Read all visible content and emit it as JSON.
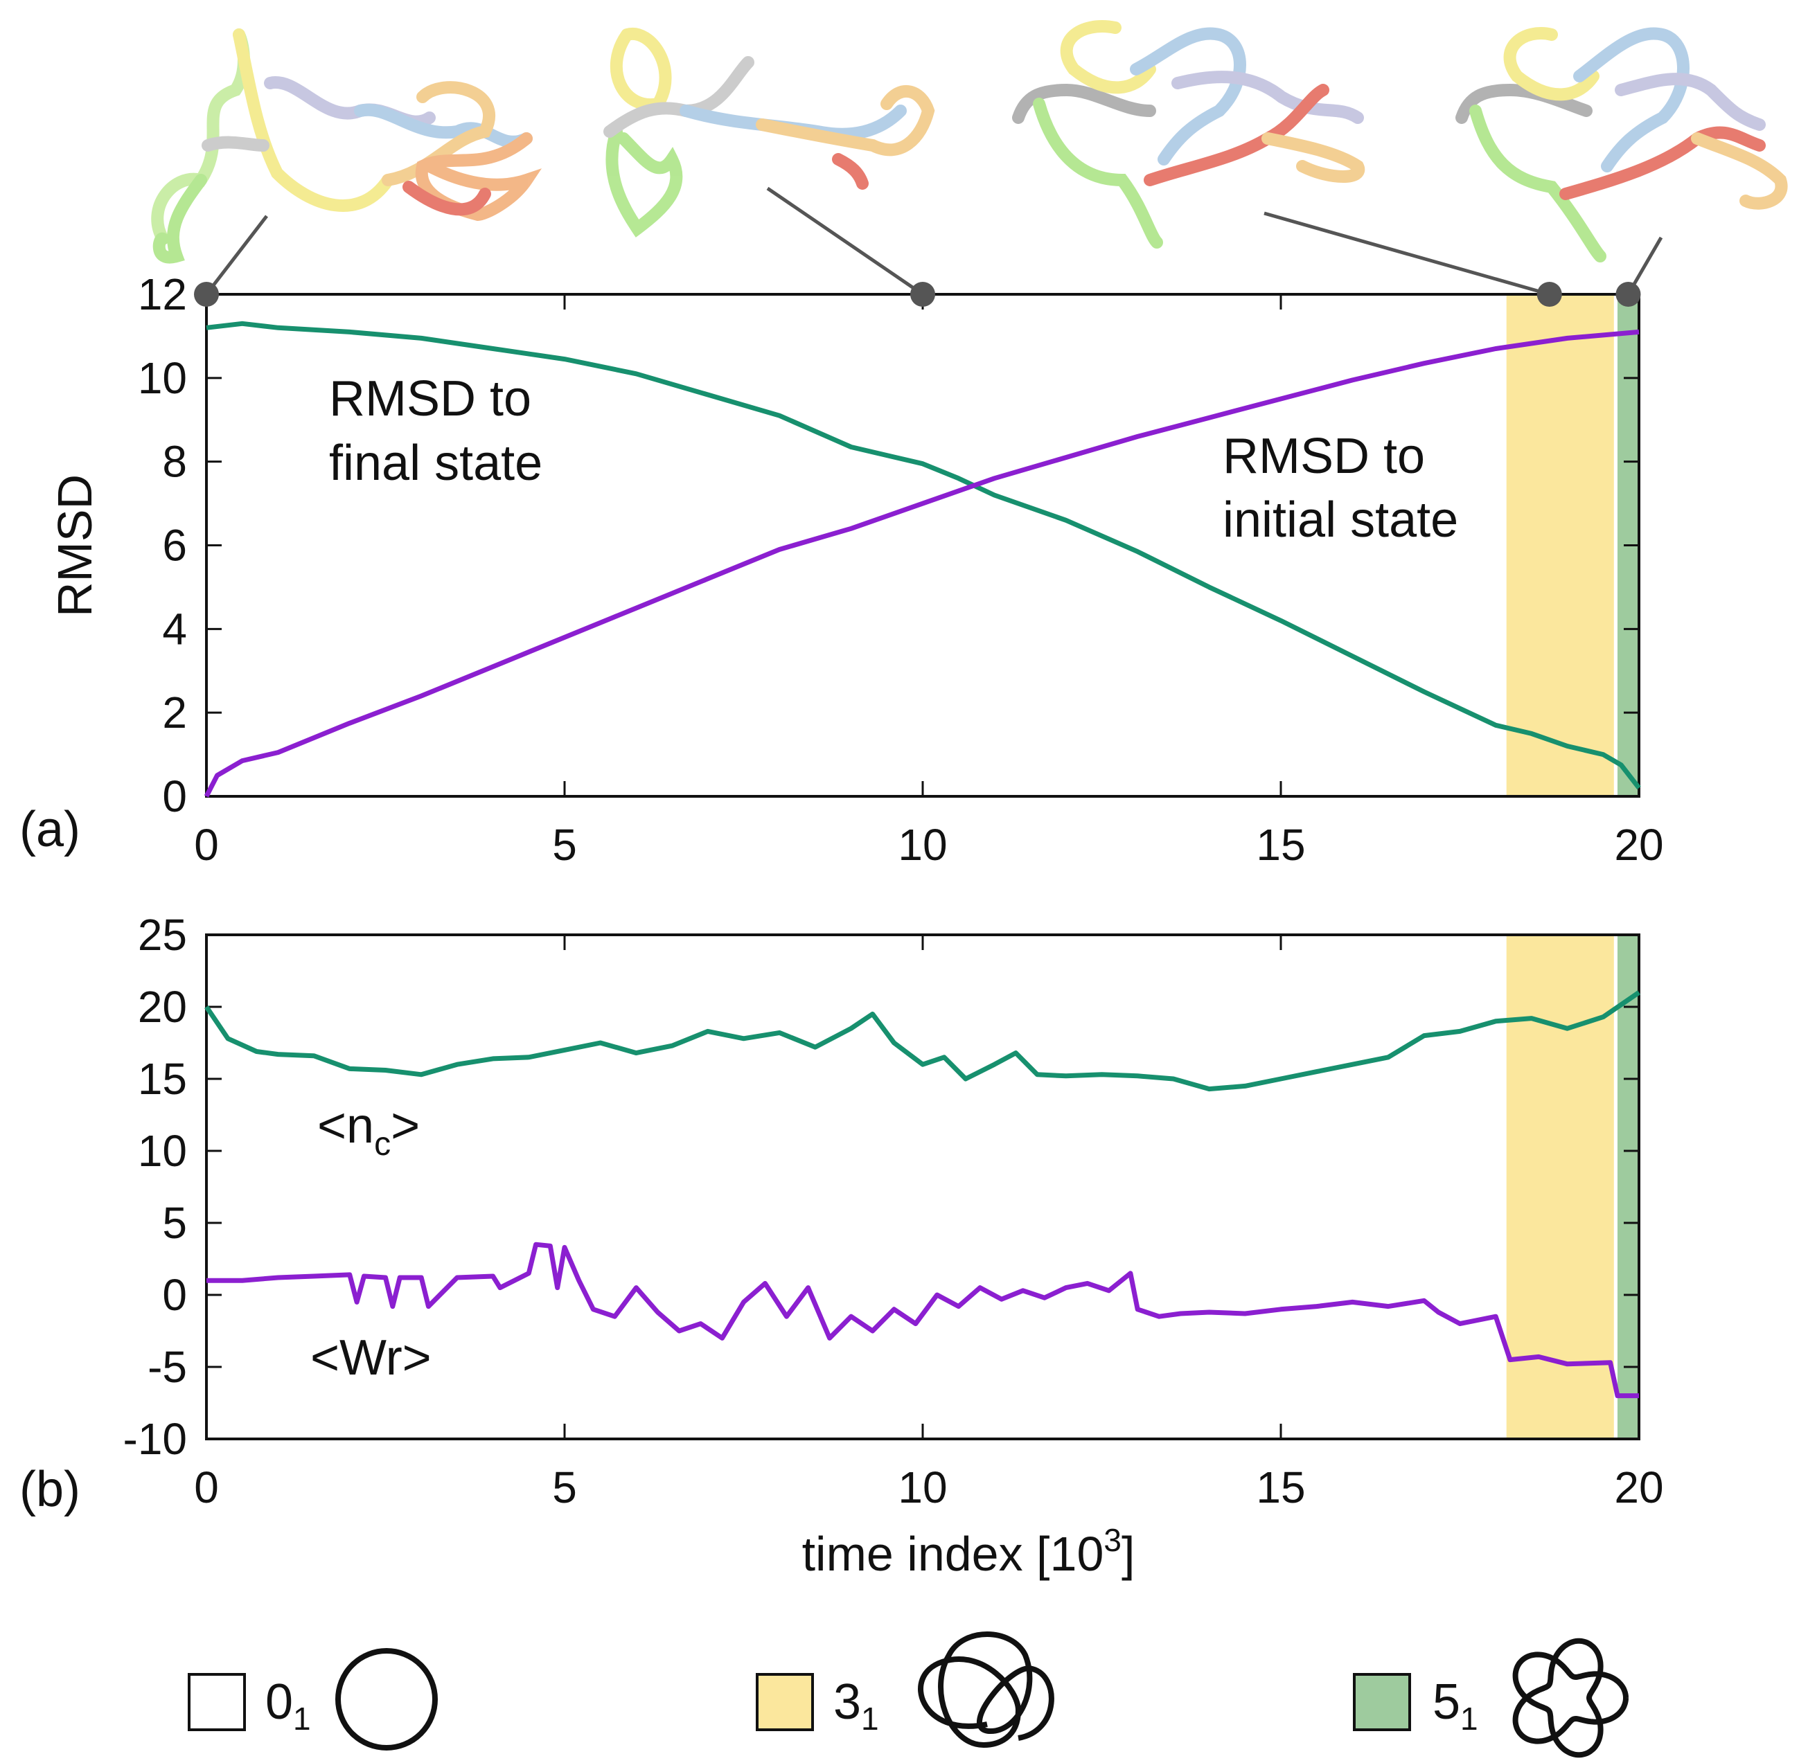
{
  "chart_data": [
    {
      "panel_label": "(a)",
      "type": "line",
      "ylabel": "RMSD",
      "xlabel": "",
      "xlim": [
        0,
        20
      ],
      "ylim": [
        0,
        12
      ],
      "x_ticks": [
        "0",
        "5",
        "10",
        "15",
        "20"
      ],
      "y_ticks": [
        "0",
        "2",
        "4",
        "6",
        "8",
        "10",
        "12"
      ],
      "shaded_regions": [
        {
          "knot": "3_1",
          "x_start": 18.15,
          "x_end": 19.65,
          "color": "#fbe79d"
        },
        {
          "knot": "5_1",
          "x_start": 19.7,
          "x_end": 20.0,
          "color": "#9ecb9e"
        }
      ],
      "snapshot_markers_x": [
        0,
        10,
        18.75,
        19.85
      ],
      "series": [
        {
          "name": "RMSD to final state",
          "label_line1": "RMSD to",
          "label_line2": "final state",
          "color": "#17906e",
          "x": [
            0,
            0.5,
            1,
            2,
            3,
            4,
            5,
            6,
            7,
            8,
            9,
            9.5,
            10,
            10.5,
            11,
            12,
            13,
            14,
            15,
            16,
            17,
            18,
            18.5,
            19,
            19.5,
            19.75,
            20
          ],
          "y": [
            11.2,
            11.3,
            11.2,
            11.1,
            10.95,
            10.7,
            10.45,
            10.1,
            9.6,
            9.1,
            8.35,
            8.15,
            7.95,
            7.6,
            7.2,
            6.6,
            5.85,
            5.0,
            4.2,
            3.35,
            2.5,
            1.7,
            1.5,
            1.2,
            1.0,
            0.75,
            0.2
          ]
        },
        {
          "name": "RMSD to initial state",
          "label_line1": "RMSD to",
          "label_line2": "initial state",
          "color": "#8b1fd0",
          "x": [
            0,
            0.15,
            0.5,
            1,
            2,
            3,
            4,
            5,
            6,
            7,
            8,
            9,
            10,
            11,
            12,
            13,
            14,
            15,
            16,
            17,
            18,
            19,
            20
          ],
          "y": [
            0,
            0.5,
            0.85,
            1.05,
            1.75,
            2.4,
            3.1,
            3.8,
            4.5,
            5.2,
            5.9,
            6.4,
            7.0,
            7.6,
            8.1,
            8.6,
            9.05,
            9.5,
            9.95,
            10.35,
            10.7,
            10.95,
            11.1
          ]
        }
      ]
    },
    {
      "panel_label": "(b)",
      "type": "line",
      "ylabel": "",
      "xlabel": "time index [10",
      "xlabel_sup": "3",
      "xlabel_end": "]",
      "xlim": [
        0,
        20
      ],
      "ylim": [
        -10,
        25
      ],
      "x_ticks": [
        "0",
        "5",
        "10",
        "15",
        "20"
      ],
      "y_ticks": [
        "-10",
        "-5",
        "0",
        "5",
        "10",
        "15",
        "20",
        "25"
      ],
      "shaded_regions": [
        {
          "knot": "3_1",
          "x_start": 18.15,
          "x_end": 19.65,
          "color": "#fbe79d"
        },
        {
          "knot": "5_1",
          "x_start": 19.7,
          "x_end": 20.0,
          "color": "#9ecb9e"
        }
      ],
      "series": [
        {
          "name": "<nc>",
          "label_main": "<n",
          "label_sub": "c",
          "label_end": ">",
          "color": "#17906e",
          "x": [
            0,
            0.3,
            0.7,
            1,
            1.5,
            2,
            2.5,
            3,
            3.5,
            4,
            4.5,
            5,
            5.5,
            6,
            6.5,
            7,
            7.5,
            8,
            8.5,
            9,
            9.3,
            9.6,
            10,
            10.3,
            10.6,
            11,
            11.3,
            11.6,
            12,
            12.5,
            13,
            13.5,
            14,
            14.5,
            15,
            15.5,
            16,
            16.5,
            17,
            17.5,
            18,
            18.5,
            19,
            19.5,
            20
          ],
          "y": [
            20,
            17.8,
            16.9,
            16.7,
            16.6,
            15.7,
            15.6,
            15.3,
            16.0,
            16.4,
            16.5,
            17.0,
            17.5,
            16.8,
            17.3,
            18.3,
            17.8,
            18.2,
            17.2,
            18.5,
            19.5,
            17.5,
            16.0,
            16.5,
            15.0,
            16.0,
            16.8,
            15.3,
            15.2,
            15.3,
            15.2,
            15.0,
            14.3,
            14.5,
            15.0,
            15.5,
            16.0,
            16.5,
            18.0,
            18.3,
            19.0,
            19.2,
            18.5,
            19.3,
            21.0
          ]
        },
        {
          "name": "<Wr>",
          "label_main": "<Wr>",
          "color": "#8b1fd0",
          "x": [
            0,
            0.5,
            1,
            1.5,
            2,
            2.1,
            2.2,
            2.5,
            2.6,
            2.7,
            3,
            3.1,
            3.5,
            4,
            4.1,
            4.5,
            4.6,
            4.8,
            4.9,
            5,
            5.2,
            5.4,
            5.7,
            6,
            6.3,
            6.6,
            6.9,
            7.2,
            7.5,
            7.8,
            8.1,
            8.4,
            8.7,
            9,
            9.3,
            9.6,
            9.9,
            10.2,
            10.5,
            10.8,
            11.1,
            11.4,
            11.7,
            12,
            12.3,
            12.6,
            12.9,
            13,
            13.3,
            13.6,
            14,
            14.5,
            15,
            15.5,
            16,
            16.5,
            17,
            17.2,
            17.5,
            18,
            18.2,
            18.6,
            19,
            19.6,
            19.7,
            20
          ],
          "y": [
            1.0,
            1.0,
            1.2,
            1.3,
            1.4,
            -0.5,
            1.3,
            1.2,
            -0.8,
            1.2,
            1.2,
            -0.8,
            1.2,
            1.3,
            0.5,
            1.5,
            3.5,
            3.4,
            0.5,
            3.3,
            1.0,
            -1.0,
            -1.5,
            0.5,
            -1.2,
            -2.5,
            -2.0,
            -3.0,
            -0.5,
            0.8,
            -1.5,
            0.5,
            -3.0,
            -1.5,
            -2.5,
            -1.0,
            -2.0,
            0.0,
            -0.8,
            0.5,
            -0.3,
            0.3,
            -0.2,
            0.5,
            0.8,
            0.3,
            1.5,
            -1.0,
            -1.5,
            -1.3,
            -1.2,
            -1.3,
            -1.0,
            -0.8,
            -0.5,
            -0.8,
            -0.4,
            -1.2,
            -2.0,
            -1.5,
            -4.5,
            -4.3,
            -4.8,
            -4.7,
            -7.0,
            -7.0
          ]
        }
      ]
    }
  ],
  "legend": [
    {
      "symbol": "0",
      "sub": "1",
      "swatch": "#ffffff",
      "knot_icon": "unknot-icon"
    },
    {
      "symbol": "3",
      "sub": "1",
      "swatch": "#fbe79d",
      "knot_icon": "trefoil-icon"
    },
    {
      "symbol": "5",
      "sub": "1",
      "swatch": "#9ecb9e",
      "knot_icon": "cinquefoil-icon"
    }
  ],
  "colors": {
    "green": "#17906e",
    "purple": "#8b1fd0",
    "yellow": "#fbe79d",
    "darkgreen": "#9ecb9e"
  }
}
